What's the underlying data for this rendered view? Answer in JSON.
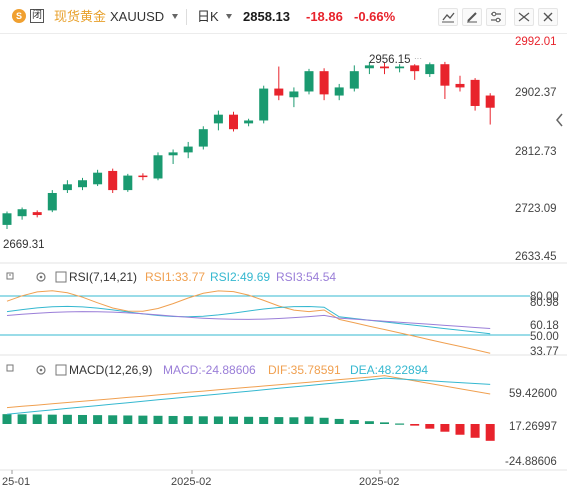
{
  "header": {
    "symbol_cn": "现货黄金",
    "symbol": "XAUUSD",
    "period": "日K",
    "price": "2858.13",
    "change": "-18.86",
    "change_pct": "-0.66%",
    "logo_glyph": "S",
    "box_glyph": "闭"
  },
  "colors": {
    "up": "#1a9a70",
    "down": "#e8232c",
    "rsi1": "#f0a050",
    "rsi2": "#35b8d0",
    "rsi3": "#9a7ed8",
    "macd_line": "#f0a050",
    "dea_line": "#35b8d0",
    "axis_text": "#444444",
    "grid": "#e6e6e6"
  },
  "price_axis": {
    "ticks": [
      "2992.01",
      "2902.37",
      "2812.73",
      "2723.09",
      "2633.45"
    ]
  },
  "annotations": {
    "high": "2956.15",
    "low": "2669.31"
  },
  "rsi": {
    "title": "RSI(7,14,21)",
    "rsi1": "RSI1:33.77",
    "rsi2": "RSI2:49.69",
    "rsi3": "RSI3:54.54",
    "axis": [
      "80.00",
      "80.98",
      "60.18",
      "50.00",
      "33.77"
    ]
  },
  "macd": {
    "title": "MACD(12,26,9)",
    "macd": "MACD:-24.88606",
    "dif": "DIF:35.78591",
    "dea": "DEA:48.22894",
    "axis": [
      "59.42600",
      "17.26997",
      "-24.88606"
    ]
  },
  "x_axis": {
    "labels": [
      "25-01",
      "2025-02",
      "2025-02"
    ]
  },
  "chart_data": {
    "type": "candlestick",
    "candles": [
      [
        2675,
        2695,
        2668,
        2698
      ],
      [
        2690,
        2702,
        2684,
        2705
      ],
      [
        2697,
        2692,
        2688,
        2700
      ],
      [
        2700,
        2730,
        2697,
        2735
      ],
      [
        2735,
        2745,
        2730,
        2752
      ],
      [
        2740,
        2752,
        2735,
        2756
      ],
      [
        2745,
        2765,
        2742,
        2770
      ],
      [
        2768,
        2735,
        2730,
        2772
      ],
      [
        2735,
        2760,
        2732,
        2763
      ],
      [
        2760,
        2758,
        2752,
        2764
      ],
      [
        2755,
        2795,
        2752,
        2800
      ],
      [
        2795,
        2800,
        2780,
        2805
      ],
      [
        2800,
        2810,
        2790,
        2818
      ],
      [
        2810,
        2840,
        2805,
        2845
      ],
      [
        2850,
        2865,
        2838,
        2872
      ],
      [
        2865,
        2840,
        2836,
        2870
      ],
      [
        2850,
        2855,
        2845,
        2858
      ],
      [
        2855,
        2910,
        2850,
        2915
      ],
      [
        2910,
        2898,
        2890,
        2948
      ],
      [
        2895,
        2905,
        2878,
        2912
      ],
      [
        2905,
        2940,
        2900,
        2944
      ],
      [
        2940,
        2900,
        2890,
        2945
      ],
      [
        2898,
        2912,
        2890,
        2918
      ],
      [
        2910,
        2940,
        2905,
        2950
      ],
      [
        2945,
        2950,
        2935,
        2956
      ],
      [
        2948,
        2945,
        2935,
        2955
      ],
      [
        2945,
        2948,
        2938,
        2952
      ],
      [
        2950,
        2940,
        2925,
        2952
      ],
      [
        2935,
        2952,
        2930,
        2955
      ],
      [
        2952,
        2915,
        2892,
        2956
      ],
      [
        2918,
        2912,
        2905,
        2932
      ],
      [
        2925,
        2880,
        2872,
        2928
      ],
      [
        2898,
        2877,
        2848,
        2902
      ]
    ],
    "rsi_pane": {
      "levels": [
        80,
        50
      ]
    }
  }
}
